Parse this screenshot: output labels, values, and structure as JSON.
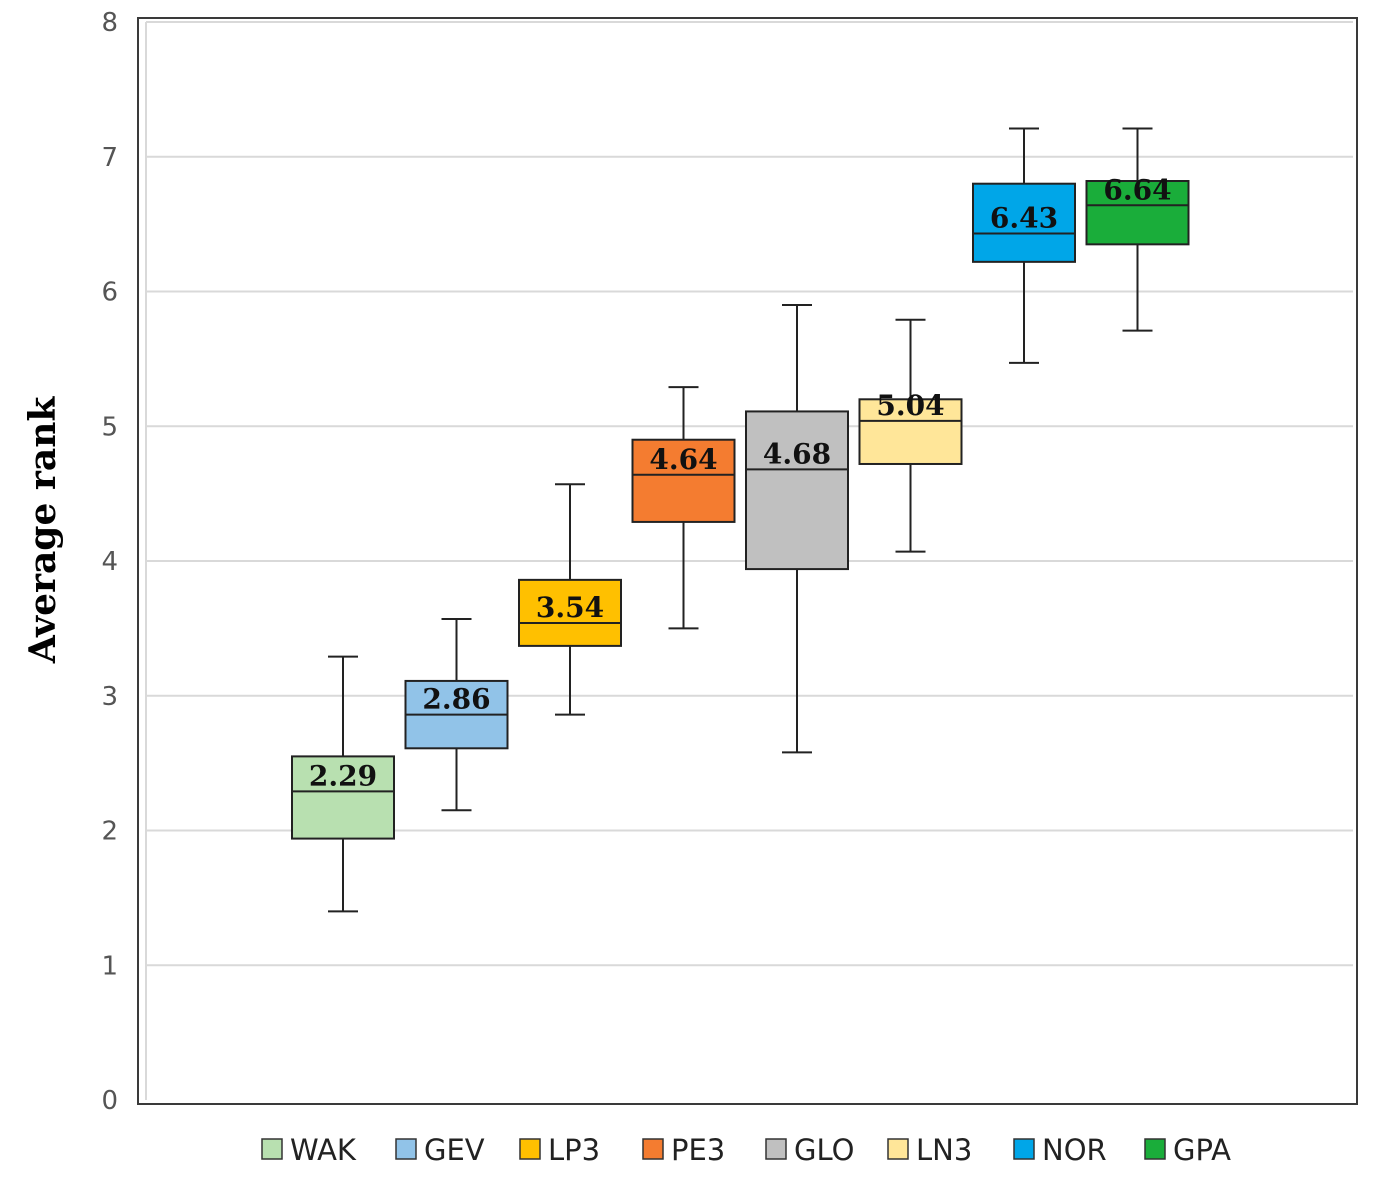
{
  "chart_data": {
    "type": "boxplot",
    "ylabel": "Average rank",
    "xlabel": "",
    "ylim": [
      0,
      8
    ],
    "yticks": [
      0,
      1,
      2,
      3,
      4,
      5,
      6,
      7,
      8
    ],
    "grid": true,
    "legend_position": "bottom",
    "series": [
      {
        "name": "WAK",
        "color": "#b8e0b0",
        "min": 1.4,
        "q1": 1.94,
        "median": 2.29,
        "q3": 2.55,
        "max": 3.29,
        "label": "2.29"
      },
      {
        "name": "GEV",
        "color": "#91c3e8",
        "min": 2.15,
        "q1": 2.61,
        "median": 2.86,
        "q3": 3.11,
        "max": 3.57,
        "label": "2.86"
      },
      {
        "name": "LP3",
        "color": "#ffc000",
        "min": 2.86,
        "q1": 3.37,
        "median": 3.54,
        "q3": 3.86,
        "max": 4.57,
        "label": "3.54"
      },
      {
        "name": "PE3",
        "color": "#f47c30",
        "min": 3.5,
        "q1": 4.29,
        "median": 4.64,
        "q3": 4.9,
        "max": 5.29,
        "label": "4.64"
      },
      {
        "name": "GLO",
        "color": "#c0c0c0",
        "min": 2.58,
        "q1": 3.94,
        "median": 4.68,
        "q3": 5.11,
        "max": 5.9,
        "label": "4.68"
      },
      {
        "name": "LN3",
        "color": "#ffe699",
        "min": 4.07,
        "q1": 4.72,
        "median": 5.04,
        "q3": 5.2,
        "max": 5.79,
        "label": "5.04"
      },
      {
        "name": "NOR",
        "color": "#00a6e8",
        "min": 5.47,
        "q1": 6.22,
        "median": 6.43,
        "q3": 6.8,
        "max": 7.21,
        "label": "6.43"
      },
      {
        "name": "GPA",
        "color": "#1aad3a",
        "min": 5.71,
        "q1": 6.35,
        "median": 6.64,
        "q3": 6.82,
        "max": 7.21,
        "label": "6.64"
      }
    ]
  }
}
